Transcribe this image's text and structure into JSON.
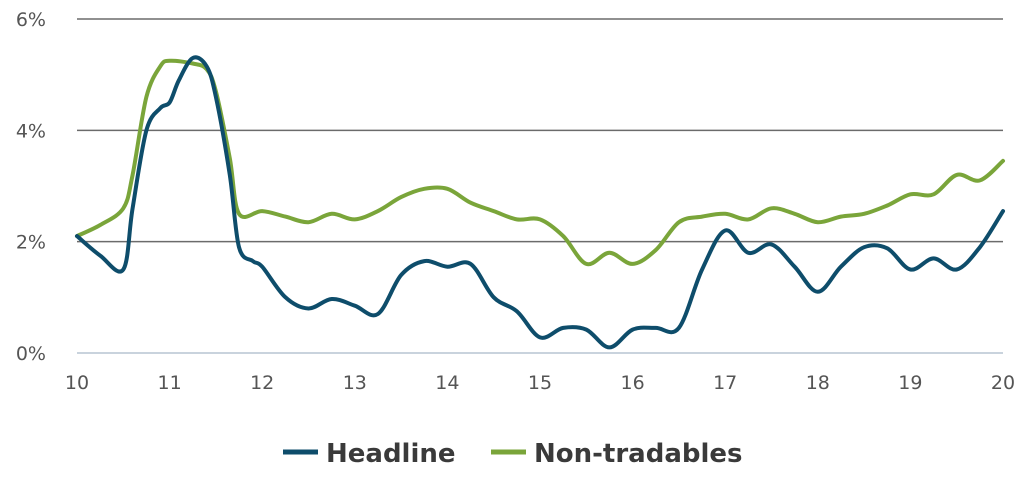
{
  "colors": {
    "headline": "#0e4d6b",
    "nontradables": "#7aa53a",
    "gridline": "#6b6b6b",
    "baseline": "#c9d3dd",
    "text": "#555555"
  },
  "legend": {
    "headline_label": "Headline",
    "nontradables_label": "Non-tradables"
  },
  "chart_data": {
    "type": "line",
    "title": "",
    "xlabel": "",
    "ylabel": "",
    "xlim": [
      10,
      20
    ],
    "ylim": [
      0,
      6
    ],
    "x_ticks": [
      10,
      11,
      12,
      13,
      14,
      15,
      16,
      17,
      18,
      19,
      20
    ],
    "x_tick_labels": [
      "10",
      "11",
      "12",
      "13",
      "14",
      "15",
      "16",
      "17",
      "18",
      "19",
      "20"
    ],
    "y_ticks": [
      0,
      2,
      4,
      6
    ],
    "y_tick_labels": [
      "0%",
      "2%",
      "4%",
      "6%"
    ],
    "grid": true,
    "legend_position": "bottom-center",
    "series": [
      {
        "name": "Headline",
        "color": "#0e4d6b",
        "points": [
          [
            10.0,
            2.1
          ],
          [
            10.25,
            1.75
          ],
          [
            10.5,
            1.5
          ],
          [
            10.6,
            2.6
          ],
          [
            10.75,
            4.0
          ],
          [
            10.9,
            4.4
          ],
          [
            11.0,
            4.5
          ],
          [
            11.1,
            4.9
          ],
          [
            11.25,
            5.3
          ],
          [
            11.4,
            5.15
          ],
          [
            11.5,
            4.6
          ],
          [
            11.65,
            3.2
          ],
          [
            11.75,
            1.9
          ],
          [
            11.9,
            1.65
          ],
          [
            12.0,
            1.55
          ],
          [
            12.25,
            1.0
          ],
          [
            12.5,
            0.8
          ],
          [
            12.75,
            0.97
          ],
          [
            13.0,
            0.85
          ],
          [
            13.25,
            0.7
          ],
          [
            13.5,
            1.4
          ],
          [
            13.75,
            1.65
          ],
          [
            14.0,
            1.55
          ],
          [
            14.25,
            1.6
          ],
          [
            14.5,
            1.0
          ],
          [
            14.75,
            0.75
          ],
          [
            15.0,
            0.28
          ],
          [
            15.25,
            0.45
          ],
          [
            15.5,
            0.42
          ],
          [
            15.75,
            0.1
          ],
          [
            16.0,
            0.42
          ],
          [
            16.25,
            0.45
          ],
          [
            16.5,
            0.45
          ],
          [
            16.75,
            1.5
          ],
          [
            17.0,
            2.2
          ],
          [
            17.25,
            1.8
          ],
          [
            17.5,
            1.95
          ],
          [
            17.75,
            1.55
          ],
          [
            18.0,
            1.1
          ],
          [
            18.25,
            1.55
          ],
          [
            18.5,
            1.9
          ],
          [
            18.75,
            1.88
          ],
          [
            19.0,
            1.5
          ],
          [
            19.25,
            1.7
          ],
          [
            19.5,
            1.5
          ],
          [
            19.75,
            1.9
          ],
          [
            20.0,
            2.55
          ]
        ]
      },
      {
        "name": "Non-tradables",
        "color": "#7aa53a",
        "points": [
          [
            10.0,
            2.1
          ],
          [
            10.25,
            2.3
          ],
          [
            10.5,
            2.6
          ],
          [
            10.6,
            3.2
          ],
          [
            10.75,
            4.6
          ],
          [
            10.9,
            5.15
          ],
          [
            11.0,
            5.25
          ],
          [
            11.25,
            5.2
          ],
          [
            11.4,
            5.1
          ],
          [
            11.5,
            4.7
          ],
          [
            11.65,
            3.5
          ],
          [
            11.75,
            2.5
          ],
          [
            12.0,
            2.55
          ],
          [
            12.25,
            2.45
          ],
          [
            12.5,
            2.35
          ],
          [
            12.75,
            2.5
          ],
          [
            13.0,
            2.4
          ],
          [
            13.25,
            2.55
          ],
          [
            13.5,
            2.8
          ],
          [
            13.75,
            2.95
          ],
          [
            14.0,
            2.95
          ],
          [
            14.25,
            2.7
          ],
          [
            14.5,
            2.55
          ],
          [
            14.75,
            2.4
          ],
          [
            15.0,
            2.4
          ],
          [
            15.25,
            2.1
          ],
          [
            15.5,
            1.6
          ],
          [
            15.75,
            1.8
          ],
          [
            16.0,
            1.6
          ],
          [
            16.25,
            1.85
          ],
          [
            16.5,
            2.35
          ],
          [
            16.75,
            2.45
          ],
          [
            17.0,
            2.5
          ],
          [
            17.25,
            2.4
          ],
          [
            17.5,
            2.6
          ],
          [
            17.75,
            2.5
          ],
          [
            18.0,
            2.35
          ],
          [
            18.25,
            2.45
          ],
          [
            18.5,
            2.5
          ],
          [
            18.75,
            2.65
          ],
          [
            19.0,
            2.85
          ],
          [
            19.25,
            2.85
          ],
          [
            19.5,
            3.2
          ],
          [
            19.75,
            3.1
          ],
          [
            20.0,
            3.45
          ]
        ]
      }
    ]
  }
}
